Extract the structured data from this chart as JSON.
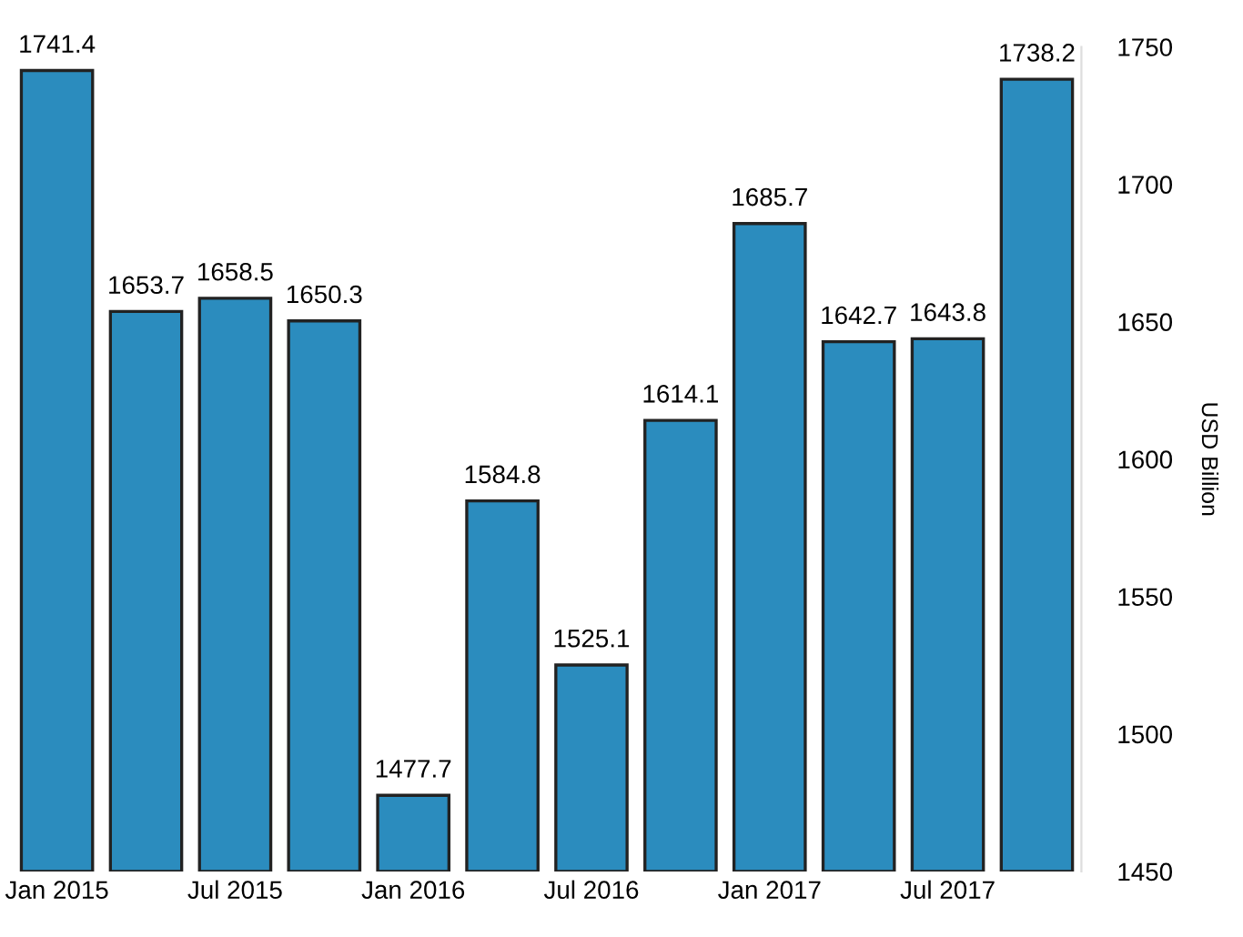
{
  "chart_data": {
    "type": "bar",
    "ylabel": "USD Billion",
    "categories": [
      "Jan 2015",
      null,
      "Jul 2015",
      null,
      "Jan 2016",
      null,
      "Jul 2016",
      null,
      "Jan 2017",
      null,
      "Jul 2017",
      null
    ],
    "values": [
      1741.4,
      1653.7,
      1658.5,
      1650.3,
      1477.7,
      1584.8,
      1525.1,
      1614.1,
      1685.7,
      1642.7,
      1643.8,
      1738.2
    ],
    "color": "#2b8cbe",
    "ylim": [
      1450,
      1750
    ],
    "yticks": [
      1450,
      1500,
      1550,
      1600,
      1650,
      1700,
      1750
    ],
    "grid": false,
    "data_labels": true,
    "legend": false
  }
}
